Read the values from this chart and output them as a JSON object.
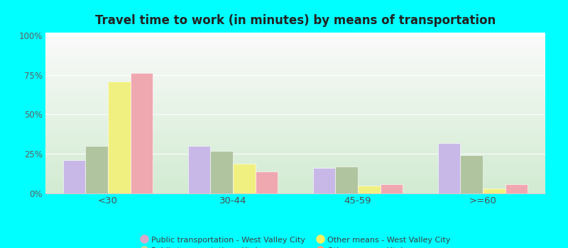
{
  "title": "Travel time to work (in minutes) by means of transportation",
  "categories": [
    "<30",
    "30-44",
    "45-59",
    ">=60"
  ],
  "series": {
    "pub_trans_wvc": [
      21,
      30,
      16,
      32
    ],
    "pub_trans_utah": [
      30,
      27,
      17,
      24
    ],
    "other_means_wvc": [
      71,
      19,
      5,
      3
    ],
    "other_means_utah": [
      76,
      14,
      6,
      6
    ]
  },
  "colors": {
    "pub_trans_wvc": "#c8b8e8",
    "pub_trans_utah": "#b0c4a0",
    "other_means_wvc": "#f0f080",
    "other_means_utah": "#f0a8b0"
  },
  "legend_labels": {
    "pub_trans_wvc": "Public transportation - West Valley City",
    "pub_trans_utah": "Public transportation - Utah",
    "other_means_wvc": "Other means - West Valley City",
    "other_means_utah": "Other means - Utah"
  },
  "legend_marker_colors": {
    "pub_trans_wvc": "#d8a8c8",
    "pub_trans_utah": "#c8d898",
    "other_means_wvc": "#f8f060",
    "other_means_utah": "#f8a080"
  },
  "ylim": [
    0,
    100
  ],
  "yticks": [
    0,
    25,
    50,
    75,
    100
  ],
  "ytick_labels": [
    "0%",
    "25%",
    "50%",
    "75%",
    "100%"
  ],
  "figure_bg": "#00ffff",
  "bar_width": 0.18
}
